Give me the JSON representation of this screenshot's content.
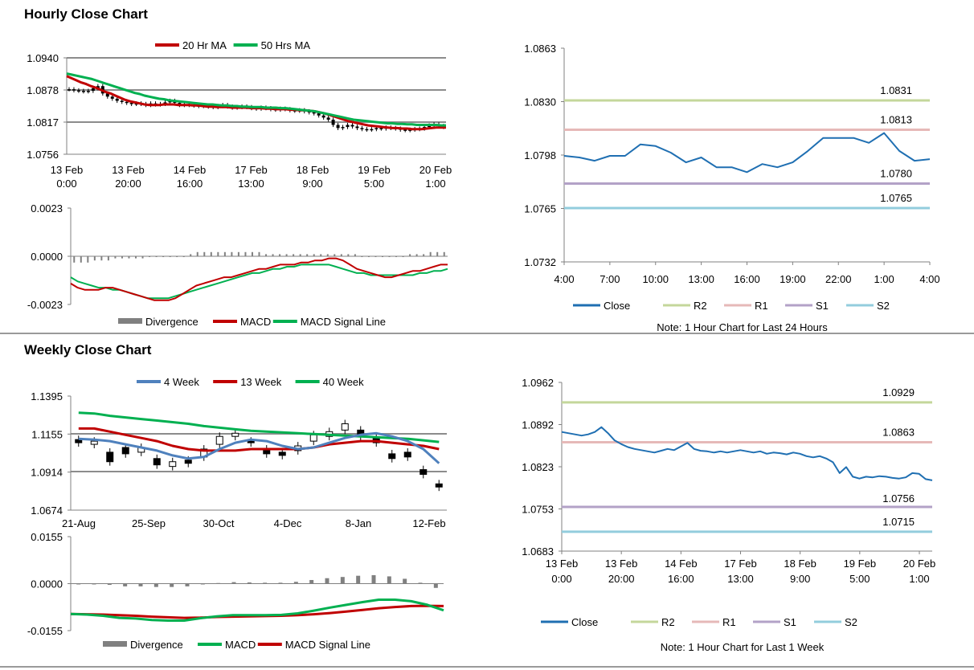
{
  "hourly_section": {
    "title": "Hourly Close Chart"
  },
  "weekly_section": {
    "title": "Weekly Close Chart"
  },
  "colors": {
    "ma_red": "#c00000",
    "ma_green": "#00b050",
    "ma_blue": "#4f81bd",
    "close_blue": "#1f6fb2",
    "r2": "#c4d79b",
    "r1": "#e6b9b8",
    "s1": "#b3a2c7",
    "s2": "#93cddd",
    "divergence": "#808080",
    "grid": "#808080"
  },
  "chart_data": [
    {
      "id": "hourly_price",
      "type": "candlestick",
      "legend": [
        "20 Hr MA",
        "50 Hrs MA"
      ],
      "y_ticks": [
        "1.0940",
        "1.0878",
        "1.0817",
        "1.0756"
      ],
      "ylim": [
        1.0756,
        1.094
      ],
      "x_ticks": [
        [
          "13 Feb",
          "0:00"
        ],
        [
          "13 Feb",
          "20:00"
        ],
        [
          "14 Feb",
          "16:00"
        ],
        [
          "17 Feb",
          "13:00"
        ],
        [
          "18 Feb",
          "9:00"
        ],
        [
          "19 Feb",
          "5:00"
        ],
        [
          "20 Feb",
          "1:00"
        ]
      ],
      "close": [
        1.088,
        1.0878,
        1.0877,
        1.0876,
        1.0877,
        1.0882,
        1.0886,
        1.0872,
        1.0866,
        1.0862,
        1.0858,
        1.0856,
        1.0854,
        1.0852,
        1.0853,
        1.0852,
        1.085,
        1.0853,
        1.0851,
        1.0852,
        1.0855,
        1.0858,
        1.0854,
        1.085,
        1.0852,
        1.085,
        1.0849,
        1.0848,
        1.0849,
        1.0847,
        1.0846,
        1.0848,
        1.085,
        1.0847,
        1.0845,
        1.0846,
        1.0847,
        1.0846,
        1.0844,
        1.0843,
        1.0845,
        1.0844,
        1.0842,
        1.0841,
        1.0843,
        1.0842,
        1.084,
        1.0839,
        1.084,
        1.0838,
        1.0836,
        1.0834,
        1.083,
        1.0826,
        1.0822,
        1.0812,
        1.0806,
        1.0808,
        1.0812,
        1.0809,
        1.0806,
        1.0804,
        1.0803,
        1.0804,
        1.0806,
        1.0805,
        1.0807,
        1.0806,
        1.0805,
        1.0803,
        1.0802,
        1.0803,
        1.0804,
        1.0805,
        1.0808,
        1.0811,
        1.0813,
        1.081,
        1.0808
      ],
      "ma20": [
        1.0905,
        1.0901,
        1.0897,
        1.0893,
        1.089,
        1.0886,
        1.0883,
        1.0879,
        1.0875,
        1.0872,
        1.0868,
        1.0864,
        1.086,
        1.0857,
        1.0855,
        1.0853,
        1.0851,
        1.085,
        1.085,
        1.085,
        1.0851,
        1.0851,
        1.0851,
        1.085,
        1.085,
        1.085,
        1.0849,
        1.0849,
        1.0848,
        1.0847,
        1.0847,
        1.0846,
        1.0846,
        1.0846,
        1.0845,
        1.0845,
        1.0845,
        1.0845,
        1.0844,
        1.0844,
        1.0844,
        1.0843,
        1.0843,
        1.0842,
        1.0842,
        1.0842,
        1.0841,
        1.0841,
        1.084,
        1.084,
        1.0839,
        1.0838,
        1.0836,
        1.0834,
        1.0831,
        1.0828,
        1.0825,
        1.0822,
        1.0819,
        1.0817,
        1.0815,
        1.0813,
        1.0811,
        1.081,
        1.0809,
        1.0808,
        1.0807,
        1.0806,
        1.0806,
        1.0805,
        1.0805,
        1.0804,
        1.0804,
        1.0804,
        1.0805,
        1.0806,
        1.0807,
        1.0807,
        1.0807
      ],
      "ma50": [
        1.091,
        1.0908,
        1.0906,
        1.0904,
        1.0902,
        1.09,
        1.0897,
        1.0894,
        1.0891,
        1.0888,
        1.0885,
        1.0882,
        1.0879,
        1.0876,
        1.0873,
        1.0871,
        1.0868,
        1.0866,
        1.0864,
        1.0862,
        1.0861,
        1.0859,
        1.0858,
        1.0857,
        1.0856,
        1.0855,
        1.0854,
        1.0853,
        1.0852,
        1.0851,
        1.0851,
        1.085,
        1.0849,
        1.0849,
        1.0848,
        1.0848,
        1.0847,
        1.0847,
        1.0846,
        1.0846,
        1.0846,
        1.0845,
        1.0845,
        1.0845,
        1.0844,
        1.0844,
        1.0843,
        1.0842,
        1.0841,
        1.084,
        1.0839,
        1.0838,
        1.0836,
        1.0834,
        1.0832,
        1.083,
        1.0828,
        1.0826,
        1.0824,
        1.0822,
        1.0821,
        1.082,
        1.0819,
        1.0818,
        1.0817,
        1.0816,
        1.0815,
        1.0815,
        1.0814,
        1.0814,
        1.0813,
        1.0813,
        1.0812,
        1.0812,
        1.0812,
        1.0812,
        1.0812,
        1.0811,
        1.0811
      ]
    },
    {
      "id": "hourly_macd",
      "type": "line",
      "y_ticks": [
        "0.0023",
        "0.0000",
        "-0.0023"
      ],
      "ylim": [
        -0.0023,
        0.0023
      ],
      "legend": [
        "Divergence",
        "MACD",
        "MACD Signal Line"
      ],
      "macd": [
        -0.0013,
        -0.0015,
        -0.0016,
        -0.0016,
        -0.0016,
        -0.0015,
        -0.0015,
        -0.0016,
        -0.0017,
        -0.0018,
        -0.0019,
        -0.002,
        -0.0021,
        -0.0021,
        -0.0021,
        -0.002,
        -0.0018,
        -0.0016,
        -0.0014,
        -0.0013,
        -0.0012,
        -0.0011,
        -0.001,
        -0.001,
        -0.0009,
        -0.0008,
        -0.0007,
        -0.0006,
        -0.0006,
        -0.0005,
        -0.0004,
        -0.0004,
        -0.0004,
        -0.0003,
        -0.0003,
        -0.0002,
        -0.0002,
        -0.0001,
        -0.0001,
        -0.0002,
        -0.0004,
        -0.0006,
        -0.0007,
        -0.0008,
        -0.0009,
        -0.001,
        -0.001,
        -0.0009,
        -0.0008,
        -0.0007,
        -0.0007,
        -0.0006,
        -0.0005,
        -0.0004,
        -0.0004
      ],
      "signal": [
        -0.001,
        -0.0012,
        -0.0013,
        -0.0014,
        -0.0015,
        -0.0015,
        -0.0016,
        -0.0016,
        -0.0017,
        -0.0018,
        -0.0019,
        -0.002,
        -0.002,
        -0.002,
        -0.002,
        -0.0019,
        -0.0018,
        -0.0017,
        -0.0016,
        -0.0015,
        -0.0014,
        -0.0013,
        -0.0012,
        -0.0011,
        -0.001,
        -0.0009,
        -0.0008,
        -0.0008,
        -0.0007,
        -0.0006,
        -0.0006,
        -0.0005,
        -0.0005,
        -0.0004,
        -0.0004,
        -0.0004,
        -0.0004,
        -0.0004,
        -0.0005,
        -0.0006,
        -0.0007,
        -0.0008,
        -0.0008,
        -0.0009,
        -0.0009,
        -0.0009,
        -0.0009,
        -0.0009,
        -0.0009,
        -0.0009,
        -0.0008,
        -0.0008,
        -0.0007,
        -0.0007,
        -0.0006
      ],
      "divergence": [
        -0.0003,
        -0.0003,
        -0.0003,
        -0.0002,
        -0.0002,
        -0.0002,
        -0.0001,
        -0.0001,
        -0.0001,
        -0.0001,
        -0.0001,
        0.0,
        0.0,
        0.0,
        0.0,
        0.0,
        0.0,
        0.0001,
        0.0002,
        0.0002,
        0.0002,
        0.0002,
        0.0002,
        0.0002,
        0.0002,
        0.0002,
        0.0002,
        0.0002,
        0.0001,
        0.0001,
        0.0001,
        0.0001,
        0.0001,
        0.0001,
        0.0001,
        0.0001,
        0.0001,
        0.0001,
        0.0001,
        0.0001,
        0.0001,
        0.0001,
        0.0,
        0.0,
        0.0,
        0.0,
        0.0,
        0.0,
        0.0,
        0.0001,
        0.0001,
        0.0001,
        0.0002,
        0.0002,
        0.0002
      ]
    },
    {
      "id": "hourly_sr",
      "type": "line",
      "y_ticks": [
        "1.0863",
        "1.0830",
        "1.0798",
        "1.0765",
        "1.0732"
      ],
      "ylim": [
        1.0732,
        1.0863
      ],
      "x_ticks": [
        "4:00",
        "7:00",
        "10:00",
        "13:00",
        "16:00",
        "19:00",
        "22:00",
        "1:00",
        "4:00"
      ],
      "close": [
        1.0797,
        1.0796,
        1.0794,
        1.0797,
        1.0797,
        1.0804,
        1.0803,
        1.0799,
        1.0793,
        1.0796,
        1.079,
        1.079,
        1.0787,
        1.0792,
        1.079,
        1.0793,
        1.08,
        1.0808,
        1.0808,
        1.0808,
        1.0805,
        1.0811,
        1.08,
        1.0794,
        1.0795
      ],
      "levels": [
        {
          "name": "R2",
          "value": 1.0831,
          "label": "1.0831"
        },
        {
          "name": "R1",
          "value": 1.0813,
          "label": "1.0813"
        },
        {
          "name": "S1",
          "value": 1.078,
          "label": "1.0780"
        },
        {
          "name": "S2",
          "value": 1.0765,
          "label": "1.0765"
        }
      ],
      "legend": [
        "Close",
        "R2",
        "R1",
        "S1",
        "S2"
      ],
      "note": "Note: 1 Hour Chart for Last 24 Hours"
    },
    {
      "id": "weekly_price",
      "type": "candlestick",
      "legend": [
        "4 Week",
        "13 Week",
        "40 Week"
      ],
      "y_ticks": [
        "1.1395",
        "1.1155",
        "1.0914",
        "1.0674"
      ],
      "ylim": [
        1.0674,
        1.1395
      ],
      "x_ticks": [
        "21-Aug",
        "25-Sep",
        "30-Oct",
        "4-Dec",
        "8-Jan",
        "12-Feb"
      ],
      "candles": [
        [
          1.112,
          1.11
        ],
        [
          1.109,
          1.111
        ],
        [
          1.104,
          1.098
        ],
        [
          1.107,
          1.103
        ],
        [
          1.104,
          1.107
        ],
        [
          1.1,
          1.096
        ],
        [
          1.095,
          1.098
        ],
        [
          1.099,
          1.097
        ],
        [
          1.101,
          1.106
        ],
        [
          1.109,
          1.114
        ],
        [
          1.114,
          1.116
        ],
        [
          1.111,
          1.11
        ],
        [
          1.106,
          1.103
        ],
        [
          1.104,
          1.102
        ],
        [
          1.105,
          1.108
        ],
        [
          1.111,
          1.115
        ],
        [
          1.114,
          1.117
        ],
        [
          1.118,
          1.122
        ],
        [
          1.118,
          1.114
        ],
        [
          1.113,
          1.11
        ],
        [
          1.103,
          1.1
        ],
        [
          1.104,
          1.101
        ],
        [
          1.093,
          1.09
        ],
        [
          1.084,
          1.082
        ]
      ],
      "ma4": [
        1.1125,
        1.112,
        1.111,
        1.109,
        1.107,
        1.105,
        1.102,
        1.1,
        1.101,
        1.106,
        1.11,
        1.112,
        1.111,
        1.108,
        1.106,
        1.107,
        1.11,
        1.113,
        1.115,
        1.116,
        1.114,
        1.111,
        1.106,
        1.097
      ],
      "ma13": [
        1.119,
        1.119,
        1.117,
        1.115,
        1.113,
        1.111,
        1.108,
        1.106,
        1.105,
        1.105,
        1.105,
        1.106,
        1.106,
        1.106,
        1.106,
        1.107,
        1.109,
        1.11,
        1.111,
        1.111,
        1.11,
        1.109,
        1.108,
        1.106
      ],
      "ma40": [
        1.129,
        1.1285,
        1.127,
        1.126,
        1.125,
        1.124,
        1.123,
        1.122,
        1.1205,
        1.1195,
        1.1185,
        1.1175,
        1.117,
        1.1165,
        1.116,
        1.1155,
        1.115,
        1.1145,
        1.114,
        1.1135,
        1.113,
        1.1125,
        1.1115,
        1.1105
      ]
    },
    {
      "id": "weekly_macd",
      "type": "line",
      "y_ticks": [
        "0.0155",
        "0.0000",
        "-0.0155"
      ],
      "ylim": [
        -0.0155,
        0.0155
      ],
      "legend": [
        "Divergence",
        "MACD",
        "MACD Signal Line"
      ],
      "macd": [
        -0.01,
        -0.0102,
        -0.0106,
        -0.0113,
        -0.0115,
        -0.012,
        -0.0122,
        -0.0122,
        -0.0114,
        -0.0108,
        -0.0104,
        -0.0104,
        -0.0104,
        -0.0103,
        -0.0098,
        -0.0089,
        -0.0079,
        -0.007,
        -0.0061,
        -0.0053,
        -0.0053,
        -0.0058,
        -0.007,
        -0.0088
      ],
      "signal": [
        -0.01,
        -0.0101,
        -0.0102,
        -0.0104,
        -0.0106,
        -0.0109,
        -0.0111,
        -0.0113,
        -0.0112,
        -0.011,
        -0.0109,
        -0.0108,
        -0.0107,
        -0.0106,
        -0.0104,
        -0.0101,
        -0.0097,
        -0.0092,
        -0.0087,
        -0.0081,
        -0.0077,
        -0.0074,
        -0.0073,
        -0.0074
      ],
      "divergence": [
        0.0,
        -0.0001,
        -0.0004,
        -0.0009,
        -0.0009,
        -0.0011,
        -0.0011,
        -0.0009,
        -0.0002,
        0.0002,
        0.0005,
        0.0004,
        0.0003,
        0.0003,
        0.0006,
        0.0012,
        0.0018,
        0.0022,
        0.0026,
        0.0028,
        0.0024,
        0.0016,
        0.0003,
        -0.0014
      ]
    },
    {
      "id": "weekly_sr",
      "type": "line",
      "y_ticks": [
        "1.0962",
        "1.0892",
        "1.0823",
        "1.0753",
        "1.0683"
      ],
      "ylim": [
        1.0683,
        1.0962
      ],
      "x_ticks": [
        [
          "13 Feb",
          "0:00"
        ],
        [
          "13 Feb",
          "20:00"
        ],
        [
          "14 Feb",
          "16:00"
        ],
        [
          "17 Feb",
          "13:00"
        ],
        [
          "18 Feb",
          "9:00"
        ],
        [
          "19 Feb",
          "5:00"
        ],
        [
          "20 Feb",
          "1:00"
        ]
      ],
      "close": [
        1.088,
        1.0878,
        1.0876,
        1.0874,
        1.0876,
        1.088,
        1.0888,
        1.0878,
        1.0866,
        1.086,
        1.0855,
        1.0852,
        1.085,
        1.0848,
        1.0846,
        1.0849,
        1.0852,
        1.085,
        1.0856,
        1.0862,
        1.0852,
        1.0849,
        1.0848,
        1.0846,
        1.0848,
        1.0846,
        1.0848,
        1.085,
        1.0848,
        1.0846,
        1.0848,
        1.0844,
        1.0846,
        1.0845,
        1.0843,
        1.0846,
        1.0844,
        1.084,
        1.0838,
        1.084,
        1.0836,
        1.083,
        1.0812,
        1.0822,
        1.0806,
        1.0803,
        1.0806,
        1.0805,
        1.0807,
        1.0806,
        1.0804,
        1.0803,
        1.0805,
        1.0812,
        1.0811,
        1.0802,
        1.08
      ],
      "levels": [
        {
          "name": "R2",
          "value": 1.0929,
          "label": "1.0929"
        },
        {
          "name": "R1",
          "value": 1.0863,
          "label": "1.0863"
        },
        {
          "name": "S1",
          "value": 1.0756,
          "label": "1.0756"
        },
        {
          "name": "S2",
          "value": 1.0715,
          "label": "1.0715"
        }
      ],
      "legend": [
        "Close",
        "R2",
        "R1",
        "S1",
        "S2"
      ],
      "note": "Note: 1 Hour Chart for Last 1 Week"
    }
  ]
}
